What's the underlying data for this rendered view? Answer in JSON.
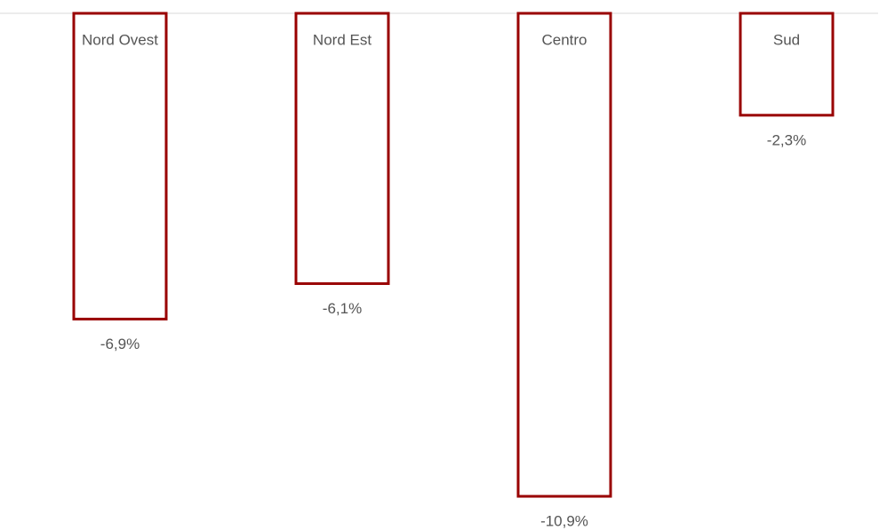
{
  "chart_data": {
    "type": "bar",
    "categories": [
      "Nord Ovest",
      "Nord Est",
      "Centro",
      "Sud"
    ],
    "values": [
      -6.9,
      -6.1,
      -10.9,
      -2.3
    ],
    "value_labels": [
      "-6,9%",
      "-6,1%",
      "-10,9%",
      "-2,3%"
    ],
    "color": "#990000",
    "ylim": [
      -11.5,
      0
    ]
  }
}
